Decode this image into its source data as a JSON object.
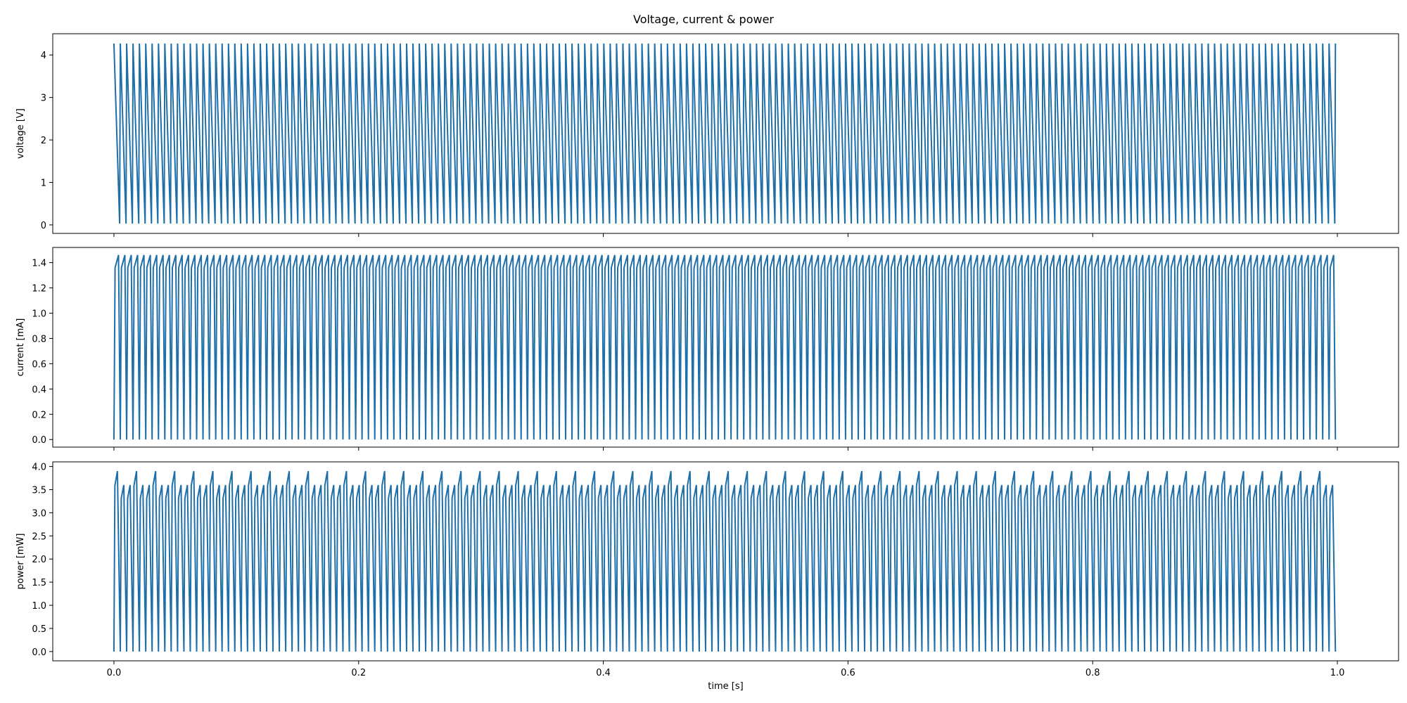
{
  "figure_title": "Voltage, current & power",
  "chart_data": [
    {
      "type": "line",
      "ylabel": "voltage [V]",
      "xlabel": "",
      "xlim": [
        -0.05,
        1.05
      ],
      "ylim": [
        -0.2,
        4.5
      ],
      "xticks": [
        0.0,
        0.2,
        0.4,
        0.6,
        0.8,
        1.0
      ],
      "xtick_labels": [],
      "yticks": [
        0,
        1,
        2,
        3,
        4
      ],
      "ytick_labels": [
        "0",
        "1",
        "2",
        "3",
        "4"
      ],
      "color": "#1f6fa8",
      "series": [
        {
          "waveform": "sawtooth",
          "t_start": 0.0,
          "t_end": 1.0,
          "period": 0.0052,
          "peak": 4.27,
          "trough": 0.03,
          "fall_fraction": 0.9
        }
      ]
    },
    {
      "type": "line",
      "ylabel": "current [mA]",
      "xlabel": "",
      "xlim": [
        -0.05,
        1.05
      ],
      "ylim": [
        -0.06,
        1.52
      ],
      "xticks": [
        0.0,
        0.2,
        0.4,
        0.6,
        0.8,
        1.0
      ],
      "xtick_labels": [],
      "yticks": [
        0.0,
        0.2,
        0.4,
        0.6,
        0.8,
        1.0,
        1.2,
        1.4
      ],
      "ytick_labels": [
        "0.0",
        "0.2",
        "0.4",
        "0.6",
        "0.8",
        "1.0",
        "1.2",
        "1.4"
      ],
      "color": "#1f6fa8",
      "series": [
        {
          "waveform": "pulse",
          "t_start": 0.0,
          "t_end": 1.0,
          "period": 0.0052,
          "peak": 1.46,
          "shoulder": 1.36,
          "trough": 0.0
        }
      ]
    },
    {
      "type": "line",
      "ylabel": "power [mW]",
      "xlabel": "time [s]",
      "xlim": [
        -0.05,
        1.05
      ],
      "ylim": [
        -0.2,
        4.1
      ],
      "xticks": [
        0.0,
        0.2,
        0.4,
        0.6,
        0.8,
        1.0
      ],
      "xtick_labels": [
        "0.0",
        "0.2",
        "0.4",
        "0.6",
        "0.8",
        "1.0"
      ],
      "yticks": [
        0.0,
        0.5,
        1.0,
        1.5,
        2.0,
        2.5,
        3.0,
        3.5,
        4.0
      ],
      "ytick_labels": [
        "0.0",
        "0.5",
        "1.0",
        "1.5",
        "2.0",
        "2.5",
        "3.0",
        "3.5",
        "4.0"
      ],
      "color": "#1f6fa8",
      "series": [
        {
          "waveform": "spike",
          "t_start": 0.0,
          "t_end": 1.0,
          "period": 0.0052,
          "peak_low": 3.6,
          "peak_high": 3.9,
          "trough": 0.0
        }
      ]
    }
  ]
}
